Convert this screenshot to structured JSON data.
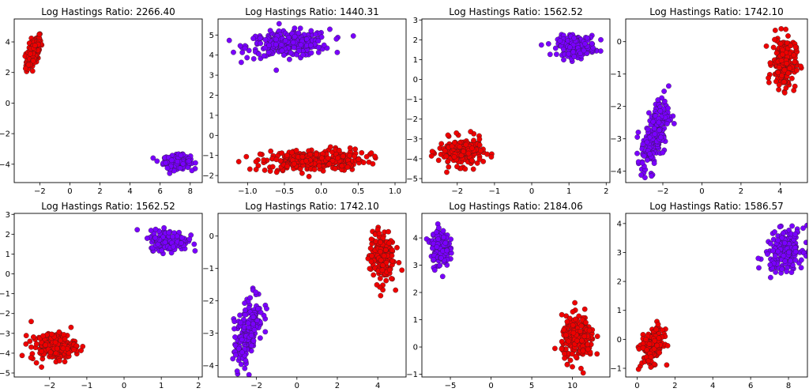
{
  "colors": {
    "red": "#ee0000",
    "purple": "#7a00ff",
    "edge": "#222222"
  },
  "chart_data": [
    {
      "type": "scatter",
      "title": "Log Hastings Ratio: 2266.40",
      "xlim": [
        -3.7,
        8.8
      ],
      "ylim": [
        -5.2,
        5.5
      ],
      "xticks": [
        -2,
        0,
        2,
        4,
        6,
        8
      ],
      "yticks": [
        -4,
        -2,
        0,
        2,
        4
      ],
      "series": [
        {
          "color": "red",
          "center": [
            -2.4,
            3.35
          ],
          "spread": [
            0.25,
            0.55
          ],
          "corr": 0.6,
          "n": 160
        },
        {
          "color": "purple",
          "center": [
            7.1,
            -3.85
          ],
          "spread": [
            0.45,
            0.22
          ],
          "corr": 0.0,
          "n": 160
        }
      ]
    },
    {
      "type": "scatter",
      "title": "Log Hastings Ratio: 1440.31",
      "xlim": [
        -1.4,
        1.15
      ],
      "ylim": [
        -2.35,
        5.8
      ],
      "xticks": [
        -1.0,
        -0.5,
        0.0,
        0.5,
        1.0
      ],
      "yticks": [
        -2,
        -1,
        0,
        1,
        2,
        3,
        4,
        5
      ],
      "series": [
        {
          "color": "purple",
          "center": [
            -0.45,
            4.55
          ],
          "spread": [
            0.28,
            0.32
          ],
          "corr": 0.15,
          "n": 300
        },
        {
          "color": "red",
          "center": [
            -0.1,
            -1.25
          ],
          "spread": [
            0.35,
            0.28
          ],
          "corr": 0.15,
          "n": 300
        }
      ]
    },
    {
      "type": "scatter",
      "title": "Log Hastings Ratio: 1562.52",
      "xlim": [
        -2.95,
        2.1
      ],
      "ylim": [
        -5.2,
        3.05
      ],
      "xticks": [
        -2,
        -1,
        0,
        1,
        2
      ],
      "yticks": [
        -5,
        -4,
        -3,
        -2,
        -1,
        0,
        1,
        2,
        3
      ],
      "series": [
        {
          "color": "purple",
          "center": [
            1.2,
            1.7
          ],
          "spread": [
            0.25,
            0.25
          ],
          "corr": 0.0,
          "n": 200
        },
        {
          "color": "red",
          "center": [
            -1.9,
            -3.65
          ],
          "spread": [
            0.3,
            0.35
          ],
          "corr": 0.0,
          "n": 200
        }
      ]
    },
    {
      "type": "scatter",
      "title": "Log Hastings Ratio: 1742.10",
      "xlim": [
        -3.9,
        5.4
      ],
      "ylim": [
        -4.35,
        0.7
      ],
      "xticks": [
        -2,
        0,
        2,
        4
      ],
      "yticks": [
        -4,
        -3,
        -2,
        -1,
        0
      ],
      "series": [
        {
          "color": "red",
          "center": [
            4.2,
            -0.65
          ],
          "spread": [
            0.3,
            0.4
          ],
          "corr": 0.0,
          "n": 200
        },
        {
          "color": "purple",
          "center": [
            -2.4,
            -2.9
          ],
          "spread": [
            0.35,
            0.55
          ],
          "corr": 0.55,
          "n": 200
        }
      ]
    },
    {
      "type": "scatter",
      "title": "Log Hastings Ratio: 1562.52",
      "xlim": [
        -2.95,
        2.1
      ],
      "ylim": [
        -5.2,
        3.05
      ],
      "xticks": [
        -2,
        -1,
        0,
        1,
        2
      ],
      "yticks": [
        -5,
        -4,
        -3,
        -2,
        -1,
        0,
        1,
        2,
        3
      ],
      "series": [
        {
          "color": "purple",
          "center": [
            1.2,
            1.7
          ],
          "spread": [
            0.25,
            0.25
          ],
          "corr": 0.0,
          "n": 200
        },
        {
          "color": "red",
          "center": [
            -1.9,
            -3.65
          ],
          "spread": [
            0.3,
            0.35
          ],
          "corr": 0.0,
          "n": 200
        }
      ]
    },
    {
      "type": "scatter",
      "title": "Log Hastings Ratio: 1742.10",
      "xlim": [
        -3.9,
        5.4
      ],
      "ylim": [
        -4.35,
        0.7
      ],
      "xticks": [
        -2,
        0,
        2,
        4
      ],
      "yticks": [
        -4,
        -3,
        -2,
        -1,
        0
      ],
      "series": [
        {
          "color": "red",
          "center": [
            4.2,
            -0.65
          ],
          "spread": [
            0.3,
            0.4
          ],
          "corr": 0.0,
          "n": 200
        },
        {
          "color": "purple",
          "center": [
            -2.4,
            -2.9
          ],
          "spread": [
            0.35,
            0.55
          ],
          "corr": 0.55,
          "n": 200
        }
      ]
    },
    {
      "type": "scatter",
      "title": "Log Hastings Ratio: 2184.06",
      "xlim": [
        -8.5,
        14.6
      ],
      "ylim": [
        -1.1,
        4.9
      ],
      "xticks": [
        -5,
        0,
        5,
        10
      ],
      "yticks": [
        -1,
        0,
        1,
        2,
        3,
        4
      ],
      "series": [
        {
          "color": "purple",
          "center": [
            -6.3,
            3.65
          ],
          "spread": [
            0.55,
            0.35
          ],
          "corr": 0.0,
          "n": 160
        },
        {
          "color": "red",
          "center": [
            10.7,
            0.3
          ],
          "spread": [
            1.0,
            0.4
          ],
          "corr": 0.0,
          "n": 200
        }
      ]
    },
    {
      "type": "scatter",
      "title": "Log Hastings Ratio: 1586.57",
      "xlim": [
        -0.6,
        9.0
      ],
      "ylim": [
        -1.3,
        4.35
      ],
      "xticks": [
        0,
        2,
        4,
        6,
        8
      ],
      "yticks": [
        -1,
        0,
        1,
        2,
        3,
        4
      ],
      "series": [
        {
          "color": "purple",
          "center": [
            7.8,
            3.05
          ],
          "spread": [
            0.5,
            0.35
          ],
          "corr": 0.2,
          "n": 200
        },
        {
          "color": "red",
          "center": [
            0.8,
            -0.25
          ],
          "spread": [
            0.3,
            0.3
          ],
          "corr": 0.3,
          "n": 200
        }
      ]
    }
  ]
}
